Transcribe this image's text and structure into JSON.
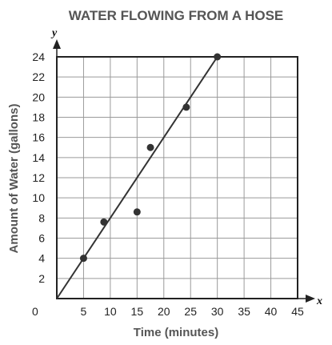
{
  "chart_data": {
    "type": "scatter",
    "title": "WATER FLOWING FROM A HOSE",
    "xlabel": "Time (minutes)",
    "ylabel": "Amount of Water (gallons)",
    "x_axis_letter": "x",
    "y_axis_letter": "y",
    "origin_label": "0",
    "xlim": [
      0,
      45
    ],
    "ylim": [
      0,
      24
    ],
    "x_ticks": [
      5,
      10,
      15,
      20,
      25,
      30,
      35,
      40,
      45
    ],
    "y_ticks": [
      2,
      4,
      6,
      8,
      10,
      12,
      14,
      16,
      18,
      20,
      22,
      24
    ],
    "grid": true,
    "points": [
      {
        "x": 5,
        "y": 4
      },
      {
        "x": 8.8,
        "y": 7.6
      },
      {
        "x": 15,
        "y": 8.6
      },
      {
        "x": 17.5,
        "y": 15
      },
      {
        "x": 24.2,
        "y": 19
      },
      {
        "x": 30,
        "y": 24
      }
    ],
    "trend_line": {
      "from": [
        0,
        0
      ],
      "to": [
        30,
        24
      ]
    }
  },
  "colors": {
    "grid": "#9a9a9a",
    "axis": "#222222",
    "marker": "#333333",
    "title": "#555555"
  }
}
